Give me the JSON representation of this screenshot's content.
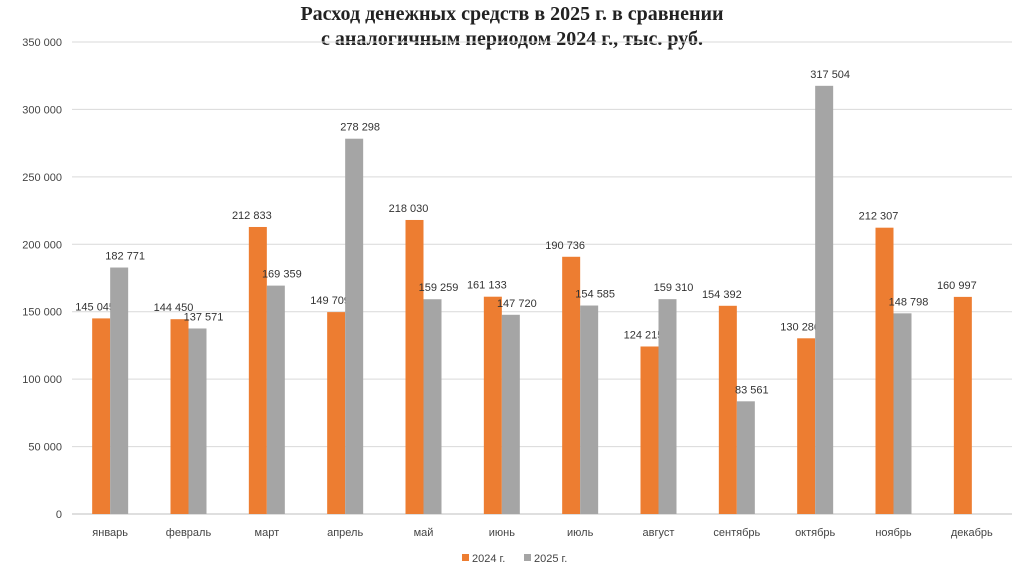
{
  "chart_data": {
    "type": "bar",
    "title_line1": "Расход денежных средств в 2025 г. в сравнении",
    "title_line2": "с аналогичным периодом 2024 г., тыс. руб.",
    "xlabel": "",
    "ylabel": "",
    "ylim": [
      0,
      350000
    ],
    "yticks": [
      0,
      50000,
      100000,
      150000,
      200000,
      250000,
      300000,
      350000
    ],
    "ytick_labels": [
      "0",
      "50 000",
      "100 000",
      "150 000",
      "200 000",
      "250 000",
      "300 000",
      "350 000"
    ],
    "grid": true,
    "legend_position": "bottom",
    "categories": [
      "январь",
      "февраль",
      "март",
      "апрель",
      "май",
      "июнь",
      "июль",
      "август",
      "сентябрь",
      "октябрь",
      "ноябрь",
      "декабрь"
    ],
    "series": [
      {
        "name": "2024 г.",
        "color": "#ED7D31",
        "values": [
          145045,
          144450,
          212833,
          149709,
          218030,
          161133,
          190736,
          124215,
          154392,
          130286,
          212307,
          160997
        ],
        "labels": [
          "145 045",
          "144 450",
          "212 833",
          "149 709",
          "218 030",
          "161 133",
          "190 736",
          "124 215",
          "154 392",
          "130 286",
          "212 307",
          "160 997"
        ]
      },
      {
        "name": "2025 г.",
        "color": "#A5A5A5",
        "values": [
          182771,
          137571,
          169359,
          278298,
          159259,
          147720,
          154585,
          159310,
          83561,
          317504,
          148798,
          null
        ],
        "labels": [
          "182 771",
          "137 571",
          "169 359",
          "278 298",
          "159 259",
          "147 720",
          "154 585",
          "159 310",
          "83 561",
          "317 504",
          "148 798",
          null
        ]
      }
    ]
  }
}
